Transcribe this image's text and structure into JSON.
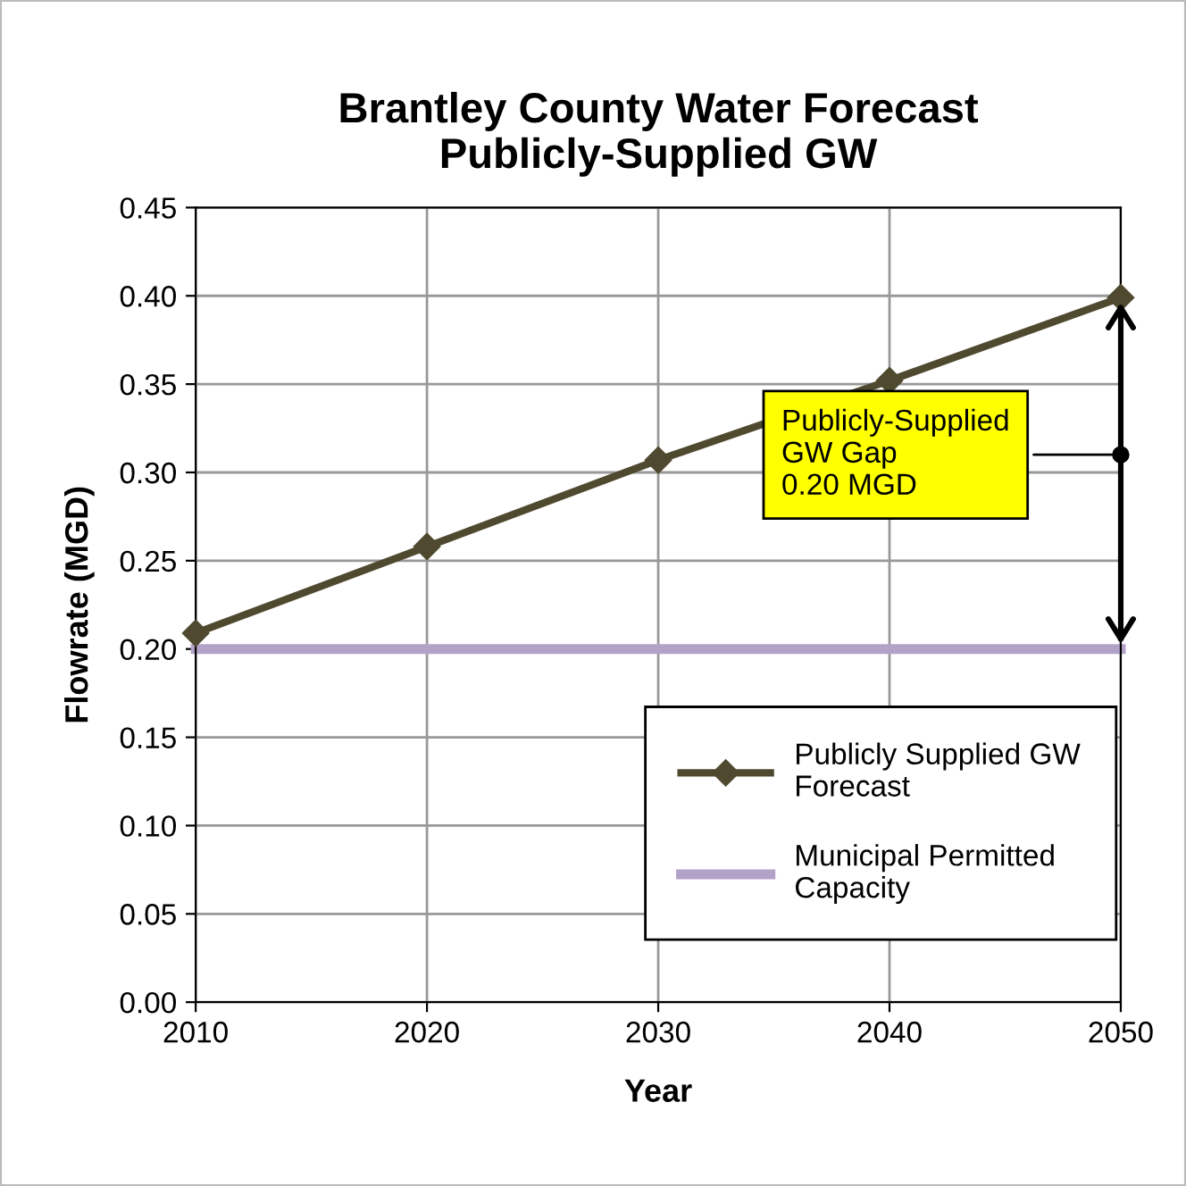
{
  "chart_data": {
    "type": "line",
    "title": "Brantley County Water Forecast\nPublicly-Supplied GW",
    "xlabel": "Year",
    "ylabel": "Flowrate (MGD)",
    "x": [
      2010,
      2020,
      2030,
      2040,
      2050
    ],
    "series": [
      {
        "name": "Publicly Supplied GW\nForecast",
        "color": "#4f4a2f",
        "values": [
          0.209,
          0.258,
          0.307,
          0.352,
          0.399
        ],
        "marker": "diamond"
      },
      {
        "name": "Municipal Permitted\nCapacity",
        "color": "#b3a2c7",
        "values": [
          0.2,
          0.2,
          0.2,
          0.2,
          0.2
        ],
        "marker": "none"
      }
    ],
    "annotations": [
      {
        "text": "Publicly-Supplied\nGW Gap\n0.20 MGD",
        "x": 2050,
        "y": 0.31
      }
    ],
    "xlim": [
      2010,
      2050
    ],
    "xticks": [
      2010,
      2020,
      2030,
      2040,
      2050
    ],
    "ylim": [
      0,
      0.45
    ],
    "yticks": [
      {
        "value": 0,
        "label": "0.00"
      },
      {
        "value": 0.05,
        "label": "0.05"
      },
      {
        "value": 0.1,
        "label": "0.10"
      },
      {
        "value": 0.15,
        "label": "0.15"
      },
      {
        "value": 0.2,
        "label": "0.20"
      },
      {
        "value": 0.25,
        "label": "0.25"
      },
      {
        "value": 0.3,
        "label": "0.30"
      },
      {
        "value": 0.35,
        "label": "0.35"
      },
      {
        "value": 0.4,
        "label": "0.40"
      },
      {
        "value": 0.45,
        "label": "0.45"
      }
    ],
    "grid": true,
    "legend": "bottom right"
  }
}
